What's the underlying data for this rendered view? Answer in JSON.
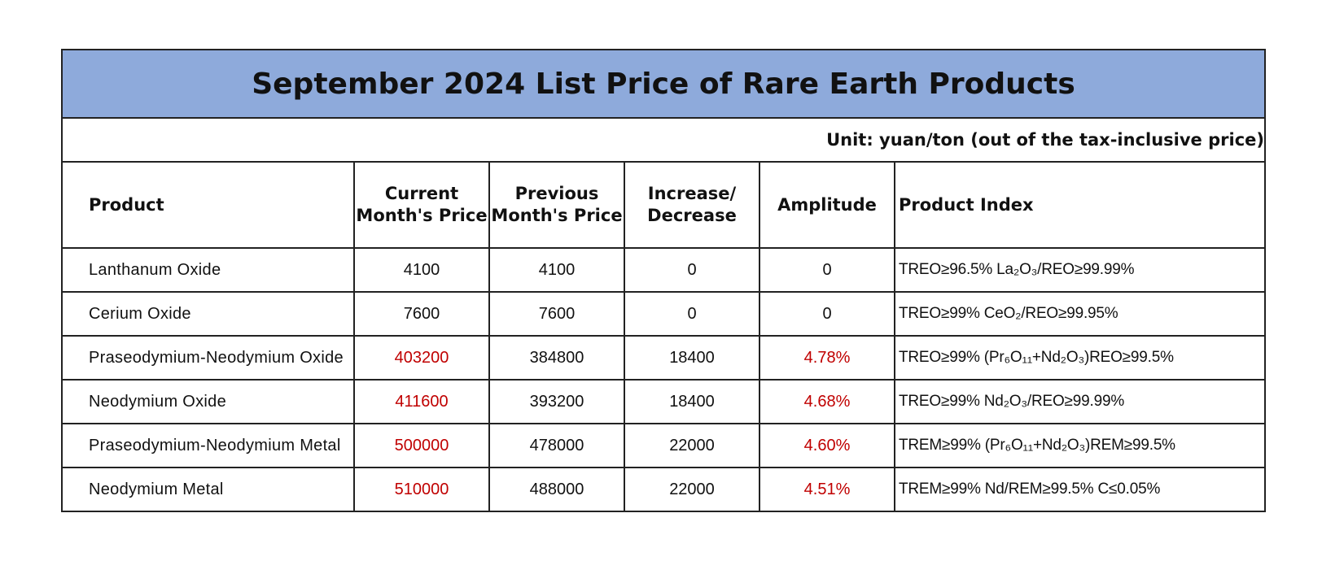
{
  "title": "September 2024 List Price of Rare Earth Products",
  "unit": "Unit: yuan/ton (out of the tax-inclusive price)",
  "columns": {
    "product": "Product",
    "current_l1": "Current",
    "current_l2": "Month's Price",
    "previous_l1": "Previous",
    "previous_l2": "Month's Price",
    "change_l1": "Increase/",
    "change_l2": "Decrease",
    "amplitude": "Amplitude",
    "index": "Product Index"
  },
  "colors": {
    "header_fill": "#8eaadb",
    "increase_text": "#c00000"
  },
  "rows": [
    {
      "product": "Lanthanum Oxide",
      "current": "4100",
      "previous": "4100",
      "change": "0",
      "amplitude": "0",
      "index": "TREO≥96.5% La₂O₃/REO≥99.99%",
      "highlight": false
    },
    {
      "product": "Cerium Oxide",
      "current": "7600",
      "previous": "7600",
      "change": "0",
      "amplitude": "0",
      "index": "TREO≥99% CeO₂/REO≥99.95%",
      "highlight": false
    },
    {
      "product": "Praseodymium-Neodymium Oxide",
      "current": "403200",
      "previous": "384800",
      "change": "18400",
      "amplitude": "4.78%",
      "index": "TREO≥99% (Pr₆O₁₁+Nd₂O₃)REO≥99.5%",
      "highlight": true
    },
    {
      "product": "Neodymium Oxide",
      "current": "411600",
      "previous": "393200",
      "change": "18400",
      "amplitude": "4.68%",
      "index": "TREO≥99% Nd₂O₃/REO≥99.99%",
      "highlight": true
    },
    {
      "product": "Praseodymium-Neodymium Metal",
      "current": "500000",
      "previous": "478000",
      "change": "22000",
      "amplitude": "4.60%",
      "index": "TREM≥99% (Pr₆O₁₁+Nd₂O₃)REM≥99.5%",
      "highlight": true
    },
    {
      "product": "Neodymium Metal",
      "current": "510000",
      "previous": "488000",
      "change": "22000",
      "amplitude": "4.51%",
      "index": "TREM≥99% Nd/REM≥99.5% C≤0.05%",
      "highlight": true
    }
  ]
}
